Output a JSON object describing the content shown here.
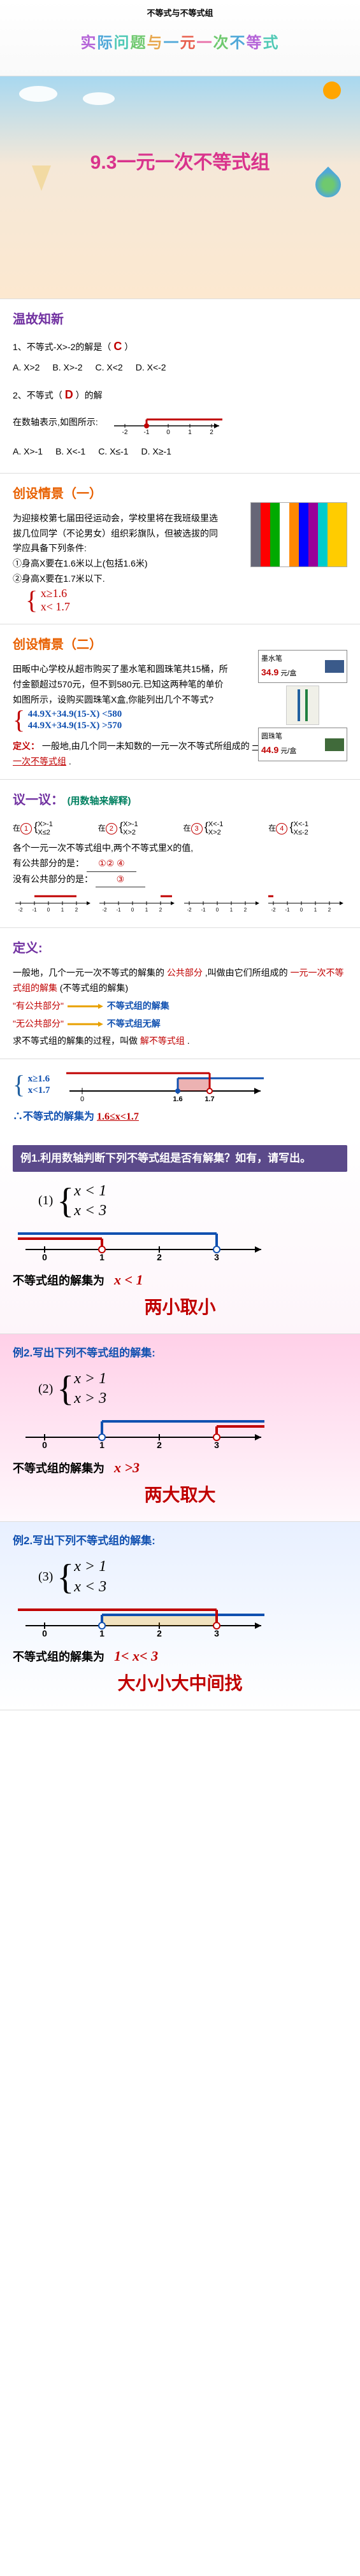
{
  "slide1": {
    "top_label": "不等式与不等式组",
    "title_chars": [
      "实",
      "际",
      "问",
      "题",
      "与",
      "一",
      "元",
      "一",
      "次",
      "不",
      "等",
      "式"
    ],
    "title_colors": [
      "c-purple",
      "c-blue",
      "c-teal",
      "c-green",
      "c-orange",
      "c-blue",
      "c-red",
      "c-pink",
      "c-green",
      "c-blue",
      "c-purple",
      "c-teal"
    ]
  },
  "slide2": {
    "title": "9.3一元一次不等式组"
  },
  "slide3": {
    "heading": "温故知新",
    "q1": "1、不等式-X>-2的解是（",
    "q1_ans": "C",
    "q1_tail": "）",
    "q1_opts": [
      "A.  X>2",
      "B.  X>-2",
      "C.  X<2",
      "D.  X<-2"
    ],
    "q2": "2、不等式（",
    "q2_ans": "D",
    "q2_tail": "）的解",
    "q2_line2": "在数轴表示,如图所示:",
    "q2_opts": [
      "A.  X>-1",
      "B.  X<-1",
      "C.  X≤-1",
      "D.  X≥-1"
    ],
    "nl": {
      "ticks": [
        -2,
        -1,
        0,
        1,
        2
      ],
      "filled_from": -1,
      "direction": "right",
      "dot_filled": true
    }
  },
  "slide4": {
    "heading": "创设情景（一）",
    "body": "为迎接校第七届田径运动会，学校里将在我班级里选拔几位同学（不论男女）组织彩旗队，但被选拔的同学应具备下列条件:",
    "cond1": "①身高X要在1.6米以上(包括1.6米)",
    "cond2": "②身高X要在1.7米以下.",
    "eq1": "x≥1.6",
    "eq2": "x< 1.7"
  },
  "slide5": {
    "heading": "创设情景（二）",
    "body": "田畈中心学校从超市购买了墨水笔和圆珠笔共15桶，所付金额超过570元，但不到580元.已知这两种笔的单价如图所示，设购买圆珠笔X盒,你能列出几个不等式?",
    "ink_label": "墨水笔",
    "ink_price": "34.9",
    "ink_unit": "元/盒",
    "ball_label": "圆珠笔",
    "ball_price": "44.9",
    "ball_unit": "元/盒",
    "eq1": "44.9X+34.9(15-X) <580",
    "eq2": "44.9X+34.9(15-X) >570",
    "defn_pre": "定义：",
    "defn_body1": "一般地,由几个同一未知数的一元一次不等式所组成的",
    "defn_u1": "一组不等式",
    "defn_body2": ",叫做",
    "defn_u2": "一元一次不等式组",
    "defn_body3": "."
  },
  "slide6": {
    "heading": "议一议：",
    "sub": "(用数轴来解释)",
    "groups": [
      {
        "n": "①",
        "a": "X>-1",
        "b": "X≤2"
      },
      {
        "n": "②",
        "a": "X>-1",
        "b": "X>2"
      },
      {
        "n": "③",
        "a": "X<-1",
        "b": "X>2"
      },
      {
        "n": "④",
        "a": "X<-1",
        "b": "X≤-2"
      }
    ],
    "line1": "各个一元一次不等式组中,两个不等式里X的值,",
    "line2": "有公共部分的是：",
    "ans1": "①②  ④",
    "line3": "没有公共部分的是：",
    "ans2": "③",
    "nl_ticks": [
      -2,
      -1,
      0,
      1,
      2
    ],
    "nl_configs": [
      {
        "segments": [
          {
            "from": -1,
            "to": 2,
            "left_open": true,
            "right_open": false
          }
        ]
      },
      {
        "segments": [
          {
            "from": 2,
            "to": 3,
            "left_open": true,
            "right_open": false
          }
        ]
      },
      {
        "segments": []
      },
      {
        "segments": [
          {
            "from": -3,
            "to": -2,
            "left_open": false,
            "right_open": false
          }
        ]
      }
    ]
  },
  "slide7": {
    "heading": "定义:",
    "body1": "一般地，几个一元一次不等式的解集的",
    "body1_red": "公共部分",
    "body1_tail": ",叫做由它们所组成的",
    "body1_red2": "一元一次不等式组的解集",
    "body1_tail2": "(不等式组的解集)",
    "q1_l": "\"有公共部分\"",
    "q1_r": "不等式组的解集",
    "q2_l": "\"无公共部分\"",
    "q2_r": "不等式组无解",
    "body2": "求不等式组的解集的过程，叫做",
    "body2_red": "解不等式组",
    "body2_tail": ".",
    "eq1": "x≥1.6",
    "eq2": "x<1.7",
    "final": "∴不等式的解集为",
    "final_ans": "1.6≤x<1.7",
    "nl": {
      "ticks": [
        0,
        "1.6",
        "1.7"
      ],
      "a": 1.6,
      "b": 1.7
    }
  },
  "slide8": {
    "q_title": "例1.利用数轴判断下列不等式组是否有解集？如有，请写出。",
    "num": "(1)",
    "eq1": "x < 1",
    "eq2": "x < 3",
    "nl": {
      "ticks": [
        0,
        1,
        2,
        3
      ],
      "shade_to": 1
    },
    "result_label": "不等式组的解集为",
    "result": "x < 1",
    "rule": "两小取小"
  },
  "slide9": {
    "ex_title": "例2.写出下列不等式组的解集:",
    "num": "(2)",
    "eq1": "x > 1",
    "eq2": "x > 3",
    "nl": {
      "ticks": [
        0,
        1,
        2,
        3
      ],
      "shade_from": 3
    },
    "result_label": "不等式组的解集为",
    "result": "x >3",
    "rule": "两大取大"
  },
  "slide10": {
    "ex_title": "例2.写出下列不等式组的解集:",
    "num": "(3)",
    "eq1": "x > 1",
    "eq2": "x < 3",
    "nl": {
      "ticks": [
        0,
        1,
        2,
        3
      ],
      "shade_from": 1,
      "shade_to": 3
    },
    "result_label": "不等式组的解集为",
    "result": "1< x< 3",
    "rule": "大小小大中间找"
  }
}
